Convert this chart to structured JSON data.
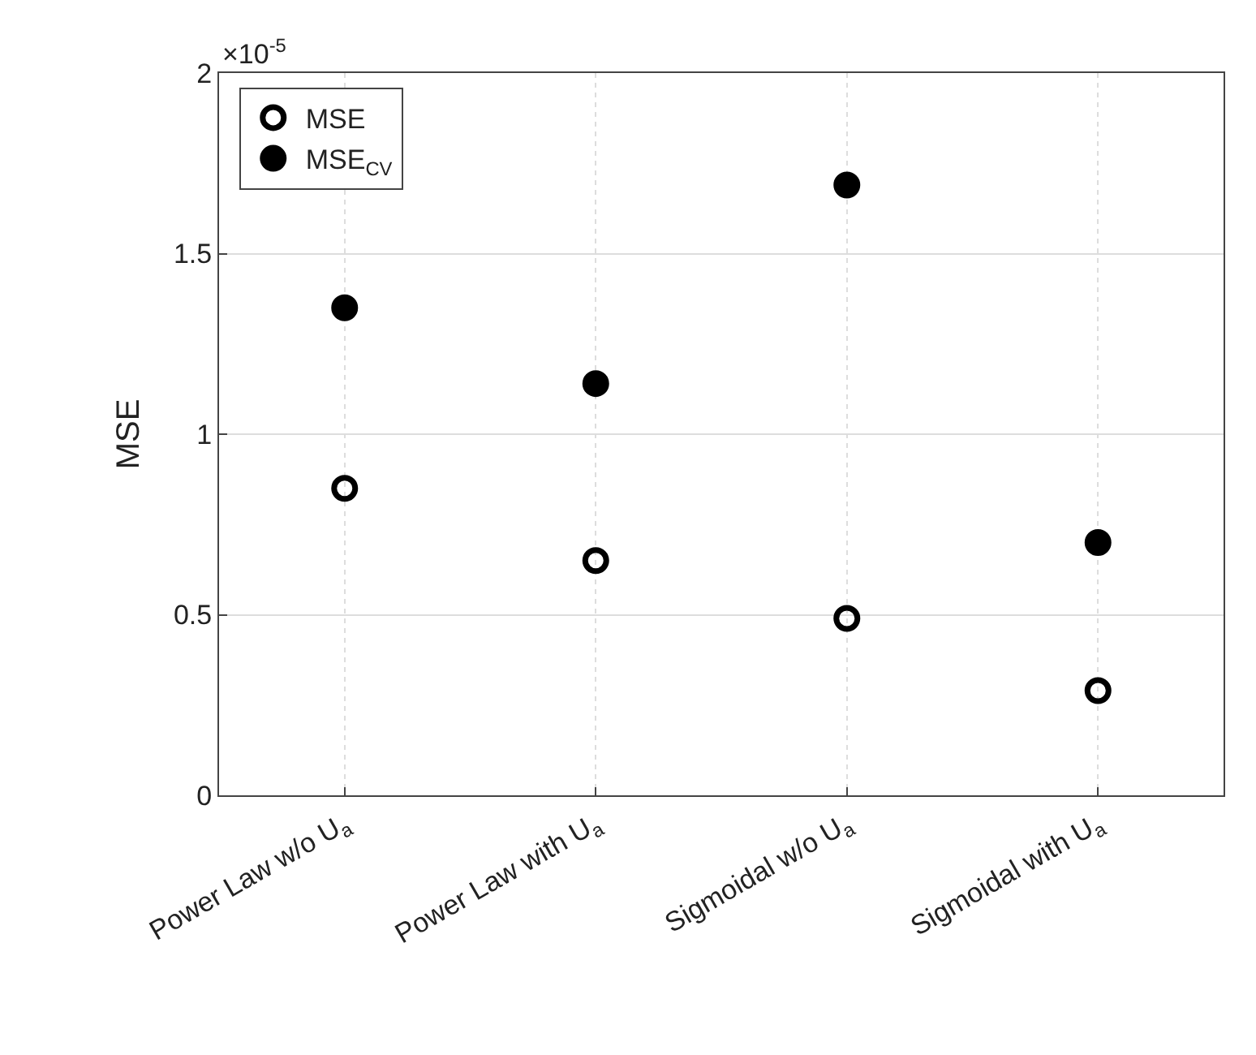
{
  "chart_data": {
    "type": "scatter",
    "ylabel": "MSE",
    "categories": [
      "Power Law w/o U$_{a}$",
      "Power Law with U$_{a}$",
      "Sigmoidal w/o U$_{a}$",
      "Sigmoidal with U$_{a}$"
    ],
    "series": [
      {
        "name": "MSE",
        "color": "#000000",
        "marker": "circle-open",
        "values": [
          0.85,
          0.65,
          0.49,
          0.29
        ]
      },
      {
        "name": "MSE$_{CV}$",
        "color": "#000000",
        "marker": "circle",
        "values": [
          1.35,
          1.14,
          1.69,
          0.7
        ]
      }
    ],
    "ylim": [
      0,
      2
    ],
    "yticks": [
      0,
      0.5,
      1,
      1.5,
      2
    ],
    "annotations": [
      "×10$^{-5}$"
    ],
    "grid": true,
    "legend": "top left"
  }
}
